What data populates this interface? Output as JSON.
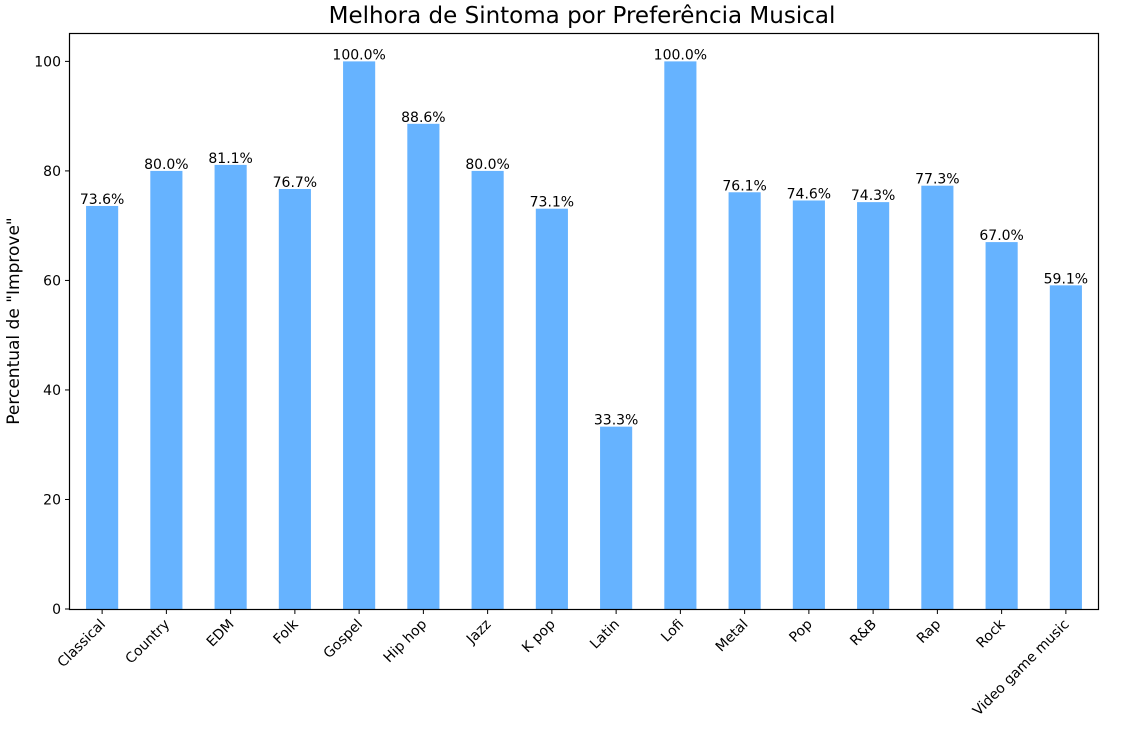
{
  "chart_data": {
    "type": "bar",
    "title": "Melhora de Sintoma por Preferência Musical",
    "xlabel": "",
    "ylabel": "Percentual de \"Improve\"",
    "categories": [
      "Classical",
      "Country",
      "EDM",
      "Folk",
      "Gospel",
      "Hip hop",
      "Jazz",
      "K pop",
      "Latin",
      "Lofi",
      "Metal",
      "Pop",
      "R&B",
      "Rap",
      "Rock",
      "Video game music"
    ],
    "values": [
      73.6,
      80.0,
      81.1,
      76.7,
      100.0,
      88.6,
      80.0,
      73.1,
      33.3,
      100.0,
      76.1,
      74.6,
      74.3,
      77.3,
      67.0,
      59.1
    ],
    "value_labels": [
      "73.6%",
      "80.0%",
      "81.1%",
      "76.7%",
      "100.0%",
      "88.6%",
      "80.0%",
      "73.1%",
      "33.3%",
      "100.0%",
      "76.1%",
      "74.6%",
      "74.3%",
      "77.3%",
      "67.0%",
      "59.1%"
    ],
    "ylim": [
      0,
      105
    ],
    "yticks": [
      0,
      20,
      40,
      60,
      80,
      100
    ],
    "grid": false,
    "legend": "none",
    "bar_color": "#66b3ff"
  }
}
